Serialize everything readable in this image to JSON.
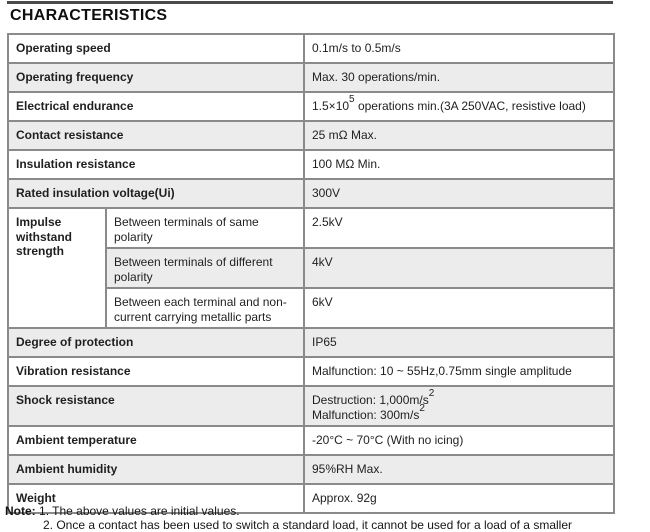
{
  "title": "CHARACTERISTICS",
  "table": {
    "rows": [
      {
        "label": "Operating speed",
        "value": "0.1m/s to 0.5m/s"
      },
      {
        "label": "Operating frequency",
        "value": "Max. 30 operations/min."
      },
      {
        "label": "Electrical endurance",
        "value": "1.5×10^{5} operations min.(3A 250VAC, resistive load)"
      },
      {
        "label": "Contact resistance",
        "value": "25 mΩ Max."
      },
      {
        "label": "Insulation resistance",
        "value": "100 MΩ Min."
      },
      {
        "label": "Rated insulation voltage(Ui)",
        "value": "300V"
      },
      {
        "group_label": "Impulse withstand strength",
        "group_rowspan": 3,
        "sub": true,
        "label": "Between terminals of same polarity",
        "value": "2.5kV"
      },
      {
        "sub": true,
        "label": "Between terminals of different polarity",
        "value": "4kV"
      },
      {
        "sub": true,
        "label": "Between each terminal and non-current carrying metallic parts",
        "value": "6kV"
      },
      {
        "label": "Degree of protection",
        "value": "IP65"
      },
      {
        "label": "Vibration resistance",
        "value": "Malfunction: 10 ~ 55Hz,0.75mm single amplitude"
      },
      {
        "label": "Shock resistance",
        "value": "Destruction: 1,000m/s^{2}\nMalfunction: 300m/s^{2}"
      },
      {
        "label": "Ambient temperature",
        "value": "-20°C ~ 70°C (With no icing)"
      },
      {
        "label": "Ambient humidity",
        "value": "95%RH Max."
      },
      {
        "label": "Weight",
        "value": "Approx. 92g"
      }
    ]
  },
  "note": {
    "label": "Note:",
    "lines": [
      "1. The above values are initial values.",
      "2. Once a contact has been used to switch a standard load, it cannot be used for a load of a smaller"
    ]
  },
  "colors": {
    "shaded_row": "#ececec",
    "grid_line": "#8a8a8a",
    "outer_border": "#6d6d6d",
    "top_rule": "#4a4a4a",
    "text": "#1f1f1f"
  }
}
